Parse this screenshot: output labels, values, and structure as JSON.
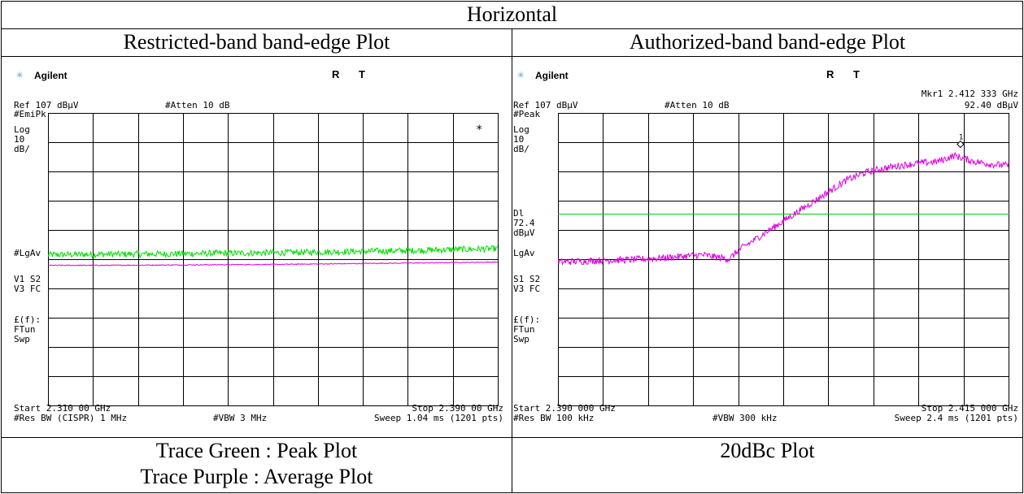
{
  "table": {
    "header": "Horizontal",
    "left_title": "Restricted-band band-edge Plot",
    "right_title": "Authorized-band band-edge Plot",
    "left_caption_line1": "Trace Green : Peak Plot",
    "left_caption_line2": "Trace Purple : Average Plot",
    "right_caption": "20dBc Plot"
  },
  "colors": {
    "peak_trace": "#00e000",
    "average_trace": "#e000e0",
    "display_line": "#00d000",
    "grid": "#000000",
    "brand_icon": "#5aa0e0"
  },
  "left_analyzer": {
    "brand": "Agilent",
    "brand_icon": "star-icon",
    "status": "R T",
    "ref": "Ref 107 dBµV",
    "atten": "#Atten 10 dB",
    "detector": "#EmiPk",
    "scale": [
      "Log",
      "10",
      "dB/"
    ],
    "lgav": "#LgAv",
    "v1s2": "V1  S2",
    "v3fc": "V3  FC",
    "ff": "£(f):",
    "ftun": "FTun",
    "swp": "Swp",
    "marker_symbol": "*",
    "start": "Start 2.310 00 GHz",
    "stop": "Stop 2.390 00 GHz",
    "res_bw": "#Res BW (CISPR) 1 MHz",
    "vbw": "#VBW 3 MHz",
    "sweep": "Sweep 1.04 ms (1201 pts)"
  },
  "right_analyzer": {
    "brand": "Agilent",
    "brand_icon": "star-icon",
    "status": "R T",
    "marker_freq": "Mkr1  2.412 333 GHz",
    "marker_level": "92.40 dBµV",
    "ref": "Ref 107 dBµV",
    "atten": "#Atten 10 dB",
    "detector": "#Peak",
    "scale": [
      "Log",
      "10",
      "dB/"
    ],
    "dl_label": [
      "Dl",
      "72.4",
      "dBµV"
    ],
    "lgav": "LgAv",
    "s1s2": "S1  S2",
    "v3fc": "V3  FC",
    "ff": "£(f):",
    "ftun": "FTun",
    "swp": "Swp",
    "marker_number": "1",
    "start": "Start 2.390 000 GHz",
    "stop": "Stop 2.415 000 GHz",
    "res_bw": "#Res BW 100 kHz",
    "vbw": "#VBW 300 kHz",
    "sweep": "Sweep 2.4 ms (1201 pts)"
  },
  "chart_data": [
    {
      "type": "line",
      "x_unit": "GHz",
      "y_unit": "dBµV",
      "xlim": [
        2.31,
        2.39
      ],
      "ylim": [
        7,
        107
      ],
      "x": [
        2.31,
        2.32,
        2.33,
        2.34,
        2.35,
        2.36,
        2.37,
        2.38,
        2.39
      ],
      "series": [
        {
          "name": "Trace Green : Peak Plot",
          "values": [
            58.5,
            58.7,
            58.8,
            59.0,
            59.2,
            59.5,
            59.8,
            60.2,
            60.6
          ]
        },
        {
          "name": "Trace Purple : Average Plot",
          "values": [
            54.9,
            54.9,
            55.0,
            55.1,
            55.2,
            55.4,
            55.6,
            55.8,
            56.0
          ]
        }
      ],
      "grid": true
    },
    {
      "type": "line",
      "x_unit": "GHz",
      "y_unit": "dBµV",
      "xlim": [
        2.39,
        2.415
      ],
      "ylim": [
        7,
        107
      ],
      "x": [
        2.39,
        2.392,
        2.394,
        2.396,
        2.398,
        2.3995,
        2.4,
        2.401,
        2.402,
        2.403,
        2.404,
        2.405,
        2.406,
        2.407,
        2.408,
        2.409,
        2.41,
        2.411,
        2.412,
        2.413,
        2.414,
        2.415
      ],
      "series": [
        {
          "name": "20dBc Plot",
          "values": [
            56,
            56.5,
            56.8,
            57.5,
            58.5,
            57,
            60,
            64,
            68,
            72,
            76,
            80,
            84,
            86.5,
            88,
            89,
            89.8,
            90.3,
            92.4,
            90.5,
            89.5,
            89
          ]
        }
      ],
      "display_line": 72.4,
      "marker": {
        "x": 2.412333,
        "y": 92.4
      },
      "grid": true
    }
  ]
}
